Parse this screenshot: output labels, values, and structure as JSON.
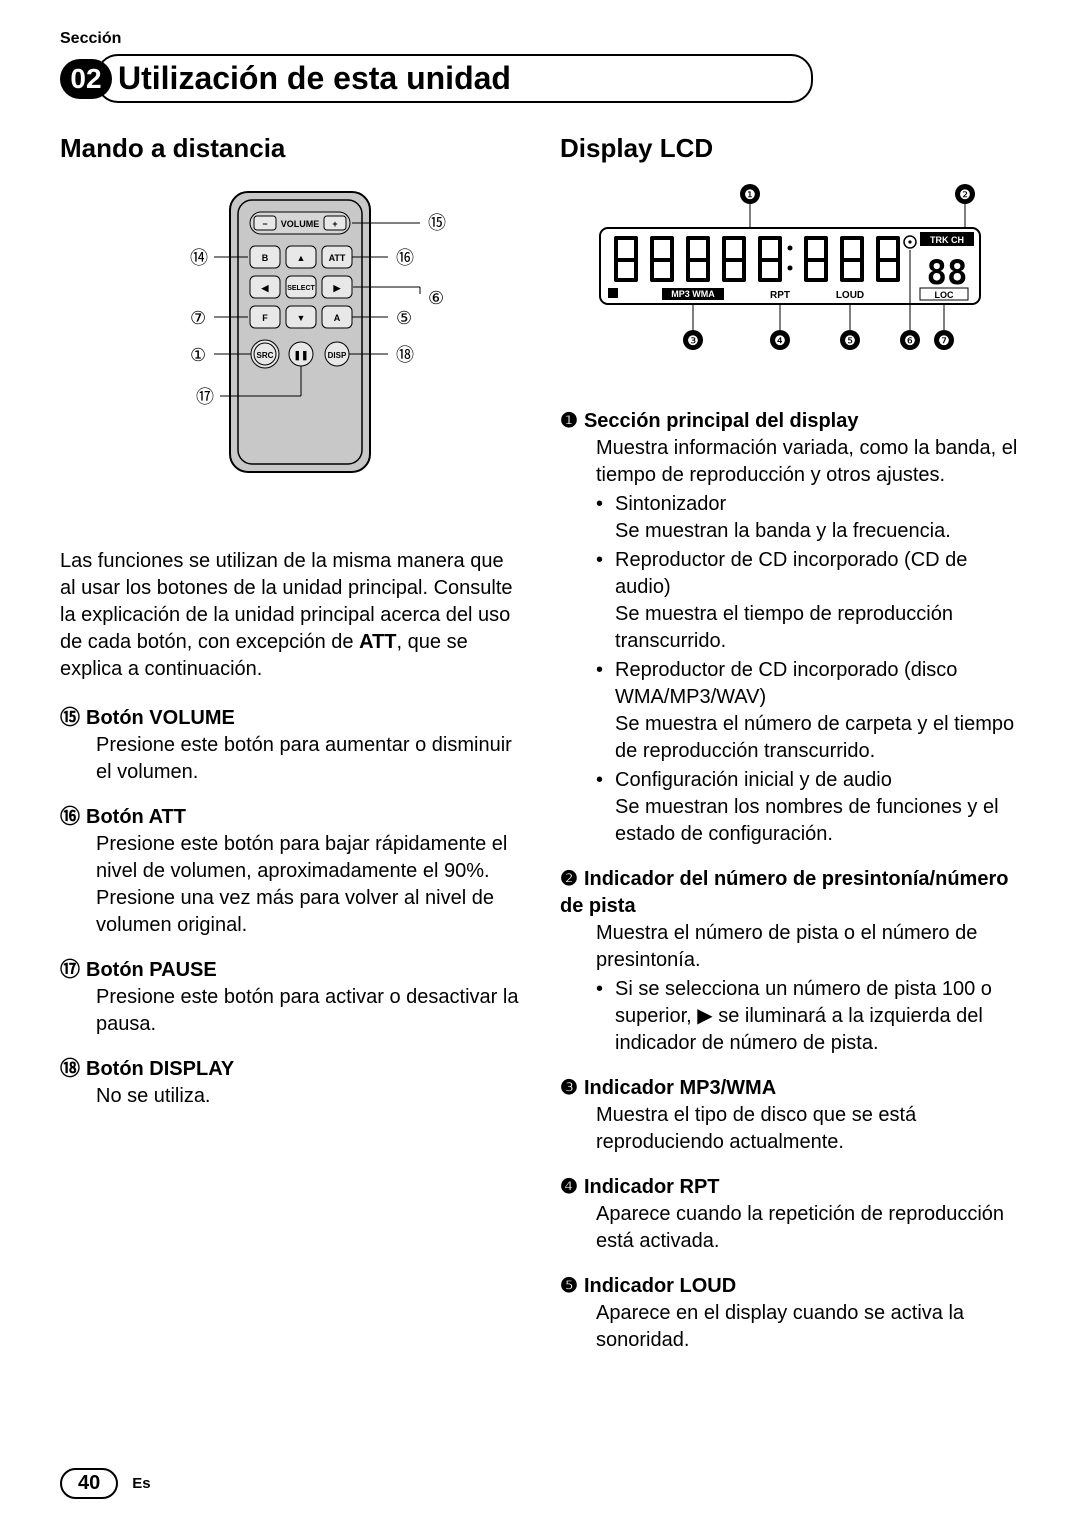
{
  "section_label": "Sección",
  "section_number": "02",
  "header_title": "Utilización de esta unidad",
  "left": {
    "heading": "Mando a distancia",
    "intro_html": "Las funciones se utilizan de la misma manera que al usar los botones de la unidad principal. Consulte la explicación de la unidad principal acerca del uso de cada botón, con excepción de <b>ATT</b>, que se explica a continuación.",
    "items": [
      {
        "num": "⑮",
        "title": "Botón VOLUME",
        "body": "Presione este botón para aumentar o disminuir el volumen."
      },
      {
        "num": "⑯",
        "title": "Botón ATT",
        "body": "Presione este botón para bajar rápidamente el nivel de volumen, aproximadamente el 90%. Presione una vez más para volver al nivel de volumen original."
      },
      {
        "num": "⑰",
        "title": "Botón PAUSE",
        "body": "Presione este botón para activar o desactivar la pausa."
      },
      {
        "num": "⑱",
        "title": "Botón DISPLAY",
        "body": "No se utiliza."
      }
    ],
    "remote_callouts": {
      "n1": "①",
      "n5": "⑤",
      "n6": "⑥",
      "n7": "⑦",
      "n14": "⑭",
      "n15": "⑮",
      "n16": "⑯",
      "n17": "⑰",
      "n18": "⑱"
    },
    "remote_buttons": {
      "volume": "VOLUME",
      "b": "B",
      "att": "ATT",
      "select": "SELECT",
      "f": "F",
      "a": "A",
      "src": "SRC",
      "disp": "DISP"
    }
  },
  "right": {
    "heading": "Display LCD",
    "lcd_labels": {
      "trkch": "TRK CH",
      "mp3wma": "MP3 WMA",
      "rpt": "RPT",
      "loud": "LOUD",
      "loc": "LOC",
      "digits": "88"
    },
    "lcd_callouts": {
      "n1": "❶",
      "n2": "❷",
      "n3": "❸",
      "n4": "❹",
      "n5": "❺",
      "n6": "❻",
      "n7": "❼"
    },
    "items": [
      {
        "num": "❶",
        "title": "Sección principal del display",
        "body": "Muestra información variada, como la banda, el tiempo de reproducción y otros ajustes.",
        "sub": [
          {
            "lead": "Sintonizador",
            "rest": "Se muestran la banda y la frecuencia."
          },
          {
            "lead": "Reproductor de CD incorporado (CD de audio)",
            "rest": "Se muestra el tiempo de reproducción transcurrido."
          },
          {
            "lead": "Reproductor de CD incorporado (disco WMA/MP3/WAV)",
            "rest": "Se muestra el número de carpeta y el tiempo de reproducción transcurrido."
          },
          {
            "lead": "Configuración inicial y de audio",
            "rest": "Se muestran los nombres de funciones y el estado de configuración."
          }
        ]
      },
      {
        "num": "❷",
        "title": "Indicador del número de presintonía/número de pista",
        "body": "Muestra el número de pista o el número de presintonía.",
        "sub": [
          {
            "lead": "Si se selecciona un número de pista 100 o superior, ▶ se iluminará a la izquierda del indicador de número de pista.",
            "rest": ""
          }
        ]
      },
      {
        "num": "❸",
        "title": "Indicador MP3/WMA",
        "body": "Muestra el tipo de disco que se está reproduciendo actualmente."
      },
      {
        "num": "❹",
        "title": "Indicador RPT",
        "body": "Aparece cuando la repetición de reproducción está activada."
      },
      {
        "num": "❺",
        "title": "Indicador LOUD",
        "body": "Aparece en el display cuando se activa la sonoridad."
      }
    ]
  },
  "page_number": "40",
  "lang": "Es",
  "colors": {
    "text": "#000000",
    "bg": "#ffffff",
    "remote_fill": "#c8c8c8",
    "remote_stroke": "#000000",
    "lcd_bg": "#ffffff"
  }
}
